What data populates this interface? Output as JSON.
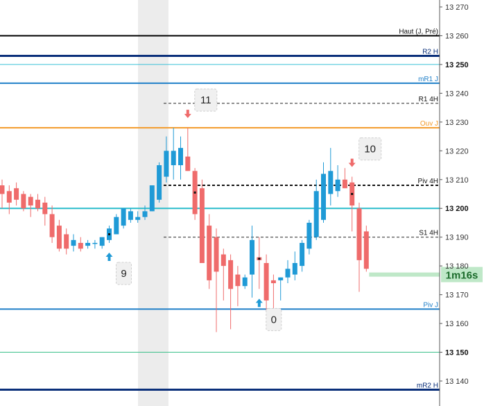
{
  "chart_data": {
    "type": "candlestick",
    "y_range": [
      13135,
      13270
    ],
    "y_ticks": [
      {
        "value": 13270,
        "label": "13 270",
        "major": false
      },
      {
        "value": 13260,
        "label": "13 260",
        "major": false
      },
      {
        "value": 13250,
        "label": "13 250",
        "major": true
      },
      {
        "value": 13240,
        "label": "13 240",
        "major": false
      },
      {
        "value": 13230,
        "label": "13 230",
        "major": false
      },
      {
        "value": 13220,
        "label": "13 220",
        "major": false
      },
      {
        "value": 13210,
        "label": "13 210",
        "major": false
      },
      {
        "value": 13200,
        "label": "13 200",
        "major": true
      },
      {
        "value": 13190,
        "label": "13 190",
        "major": false
      },
      {
        "value": 13180,
        "label": "13 180",
        "major": false
      },
      {
        "value": 13170,
        "label": "13 170",
        "major": false
      },
      {
        "value": 13160,
        "label": "13 160",
        "major": false
      },
      {
        "value": 13150,
        "label": "13 150",
        "major": true
      },
      {
        "value": 13140,
        "label": "13 140",
        "major": false
      }
    ],
    "levels": [
      {
        "name": "Haut (J, Pré)",
        "value": 13260,
        "color": "#000000",
        "style": "solid",
        "weight": 2,
        "span": "full"
      },
      {
        "name": "R2 H",
        "value": 13253,
        "color": "#0a2f7a",
        "style": "solid",
        "weight": 3,
        "span": "full"
      },
      {
        "name": "",
        "value": 13250,
        "color": "#3bc0d8",
        "style": "solid",
        "weight": 1,
        "span": "full"
      },
      {
        "name": "mR1 J",
        "value": 13243.5,
        "color": "#1f7fc8",
        "style": "solid",
        "weight": 2,
        "span": "full"
      },
      {
        "name": "R1 4H",
        "value": 13236.5,
        "color": "#222222",
        "style": "dashed",
        "weight": 1,
        "span": "partial"
      },
      {
        "name": "Ouv J",
        "value": 13228,
        "color": "#f39a2a",
        "style": "solid",
        "weight": 2,
        "span": "full"
      },
      {
        "name": "Piv 4H",
        "value": 13208,
        "color": "#111111",
        "style": "dashed",
        "weight": 2,
        "span": "partial"
      },
      {
        "name": "",
        "value": 13200,
        "color": "#29bccb",
        "style": "solid",
        "weight": 2,
        "span": "full"
      },
      {
        "name": "S1 4H",
        "value": 13190,
        "color": "#222222",
        "style": "dashed",
        "weight": 1,
        "span": "partial"
      },
      {
        "name": "Piv J",
        "value": 13165,
        "color": "#1f7fc8",
        "style": "solid",
        "weight": 2,
        "span": "full"
      },
      {
        "name": "",
        "value": 13150,
        "color": "#3bc08a",
        "style": "solid",
        "weight": 1,
        "span": "full"
      },
      {
        "name": "mR2 H",
        "value": 13137,
        "color": "#0a2f7a",
        "style": "solid",
        "weight": 3,
        "span": "full"
      }
    ],
    "current_price": {
      "value": 13177,
      "label": "1m16s",
      "color": "#bfe8c8"
    },
    "colors": {
      "up": "#1f9ad6",
      "down": "#ef6b6b",
      "highlight": "#ececec"
    },
    "candles": [
      {
        "o": 13208.0,
        "h": 13210.0,
        "l": 13200.0,
        "c": 13205.0,
        "dot": false
      },
      {
        "o": 13206.0,
        "h": 13208.0,
        "l": 13198.0,
        "c": 13202.0,
        "dot": false
      },
      {
        "o": 13207.0,
        "h": 13209.0,
        "l": 13201.0,
        "c": 13203.0,
        "dot": false
      },
      {
        "o": 13205.0,
        "h": 13206.0,
        "l": 13199.0,
        "c": 13200.0,
        "dot": false
      },
      {
        "o": 13204.0,
        "h": 13205.0,
        "l": 13197.0,
        "c": 13201.0,
        "dot": false
      },
      {
        "o": 13203.0,
        "h": 13205.0,
        "l": 13199.0,
        "c": 13200.0,
        "dot": false
      },
      {
        "o": 13202.0,
        "h": 13204.0,
        "l": 13194.0,
        "c": 13198.0,
        "dot": false
      },
      {
        "o": 13198.0,
        "h": 13201.0,
        "l": 13188.0,
        "c": 13190.0,
        "dot": false
      },
      {
        "o": 13194.0,
        "h": 13196.0,
        "l": 13185.0,
        "c": 13186.0,
        "dot": false
      },
      {
        "o": 13191.0,
        "h": 13193.0,
        "l": 13184.0,
        "c": 13186.0,
        "dot": false
      },
      {
        "o": 13187.0,
        "h": 13191.0,
        "l": 13185.0,
        "c": 13189.0,
        "dot": false
      },
      {
        "o": 13188.0,
        "h": 13190.0,
        "l": 13185.0,
        "c": 13186.0,
        "dot": false
      },
      {
        "o": 13187.0,
        "h": 13189.0,
        "l": 13186.0,
        "c": 13188.0,
        "dot": false
      },
      {
        "o": 13188.0,
        "h": 13189.0,
        "l": 13186.0,
        "c": 13188.0,
        "dot": false
      },
      {
        "o": 13187.0,
        "h": 13190.0,
        "l": 13186.0,
        "c": 13190.0,
        "dot": false
      },
      {
        "o": 13189.0,
        "h": 13194.0,
        "l": 13188.0,
        "c": 13193.0,
        "dot": true
      },
      {
        "o": 13191.0,
        "h": 13198.0,
        "l": 13191.0,
        "c": 13197.0,
        "dot": false
      },
      {
        "o": 13194.0,
        "h": 13200.0,
        "l": 13193.0,
        "c": 13200.0,
        "dot": false
      },
      {
        "o": 13196.0,
        "h": 13200.0,
        "l": 13195.0,
        "c": 13199.0,
        "dot": false
      },
      {
        "o": 13196.0,
        "h": 13199.0,
        "l": 13195.0,
        "c": 13197.0,
        "dot": false
      },
      {
        "o": 13197.0,
        "h": 13201.0,
        "l": 13196.0,
        "c": 13199.0,
        "dot": false
      },
      {
        "o": 13199.0,
        "h": 13208.0,
        "l": 13199.0,
        "c": 13208.0,
        "dot": false
      },
      {
        "o": 13203.0,
        "h": 13216.0,
        "l": 13202.0,
        "c": 13215.0,
        "dot": false
      },
      {
        "o": 13211.0,
        "h": 13225.0,
        "l": 13209.0,
        "c": 13220.0,
        "dot": false
      },
      {
        "o": 13215.0,
        "h": 13228.0,
        "l": 13210.0,
        "c": 13220.0,
        "dot": false
      },
      {
        "o": 13215.0,
        "h": 13225.0,
        "l": 13210.0,
        "c": 13221.0,
        "dot": false
      },
      {
        "o": 13218.0,
        "h": 13228.0,
        "l": 13213.0,
        "c": 13213.0,
        "dot": false
      },
      {
        "o": 13213.0,
        "h": 13214.0,
        "l": 13196.0,
        "c": 13198.0,
        "dot": true
      },
      {
        "o": 13207.0,
        "h": 13210.0,
        "l": 13181.0,
        "c": 13181.0,
        "dot": false
      },
      {
        "o": 13194.0,
        "h": 13198.0,
        "l": 13172.0,
        "c": 13175.0,
        "dot": false
      },
      {
        "o": 13190.0,
        "h": 13193.0,
        "l": 13157.0,
        "c": 13178.0,
        "dot": false
      },
      {
        "o": 13184.0,
        "h": 13186.0,
        "l": 13168.0,
        "c": 13180.0,
        "dot": false
      },
      {
        "o": 13182.0,
        "h": 13184.0,
        "l": 13158.0,
        "c": 13172.0,
        "dot": false
      },
      {
        "o": 13177.0,
        "h": 13180.0,
        "l": 13166.0,
        "c": 13173.0,
        "dot": false
      },
      {
        "o": 13173.0,
        "h": 13177.0,
        "l": 13172.0,
        "c": 13176.0,
        "dot": false
      },
      {
        "o": 13177.0,
        "h": 13194.0,
        "l": 13169.0,
        "c": 13189.0,
        "dot": false
      },
      {
        "o": 13183.0,
        "h": 13190.0,
        "l": 13172.0,
        "c": 13182.0,
        "dot": true
      },
      {
        "o": 13181.0,
        "h": 13184.0,
        "l": 13164.0,
        "c": 13168.0,
        "dot": false
      },
      {
        "o": 13175.0,
        "h": 13177.0,
        "l": 13165.0,
        "c": 13174.0,
        "dot": false
      },
      {
        "o": 13175.0,
        "h": 13176.0,
        "l": 13168.0,
        "c": 13176.0,
        "dot": false
      },
      {
        "o": 13176.0,
        "h": 13182.0,
        "l": 13174.0,
        "c": 13179.0,
        "dot": false
      },
      {
        "o": 13177.0,
        "h": 13185.0,
        "l": 13175.0,
        "c": 13181.0,
        "dot": false
      },
      {
        "o": 13180.0,
        "h": 13189.0,
        "l": 13178.0,
        "c": 13188.0,
        "dot": false
      },
      {
        "o": 13186.0,
        "h": 13196.0,
        "l": 13184.0,
        "c": 13195.0,
        "dot": false
      },
      {
        "o": 13190.0,
        "h": 13210.0,
        "l": 13189.0,
        "c": 13206.0,
        "dot": false
      },
      {
        "o": 13196.0,
        "h": 13216.0,
        "l": 13195.0,
        "c": 13212.0,
        "dot": false
      },
      {
        "o": 13205.0,
        "h": 13221.0,
        "l": 13201.0,
        "c": 13213.0,
        "dot": false
      },
      {
        "o": 13206.0,
        "h": 13215.0,
        "l": 13204.0,
        "c": 13210.0,
        "dot": false
      },
      {
        "o": 13210.0,
        "h": 13214.0,
        "l": 13207.0,
        "c": 13207.0,
        "dot": false
      },
      {
        "o": 13209.0,
        "h": 13211.0,
        "l": 13192.0,
        "c": 13201.0,
        "dot": true
      },
      {
        "o": 13200.0,
        "h": 13202.0,
        "l": 13171.0,
        "c": 13182.0,
        "dot": false
      },
      {
        "o": 13192.0,
        "h": 13194.0,
        "l": 13178.0,
        "c": 13179.0,
        "dot": false
      }
    ],
    "counters": [
      {
        "label": "11",
        "candle": 26,
        "arrow": "down"
      },
      {
        "label": "9",
        "candle": 15,
        "arrow": "up"
      },
      {
        "label": "0",
        "candle": 36,
        "arrow": "up"
      },
      {
        "label": "10",
        "candle": 49,
        "arrow": "down"
      }
    ]
  }
}
